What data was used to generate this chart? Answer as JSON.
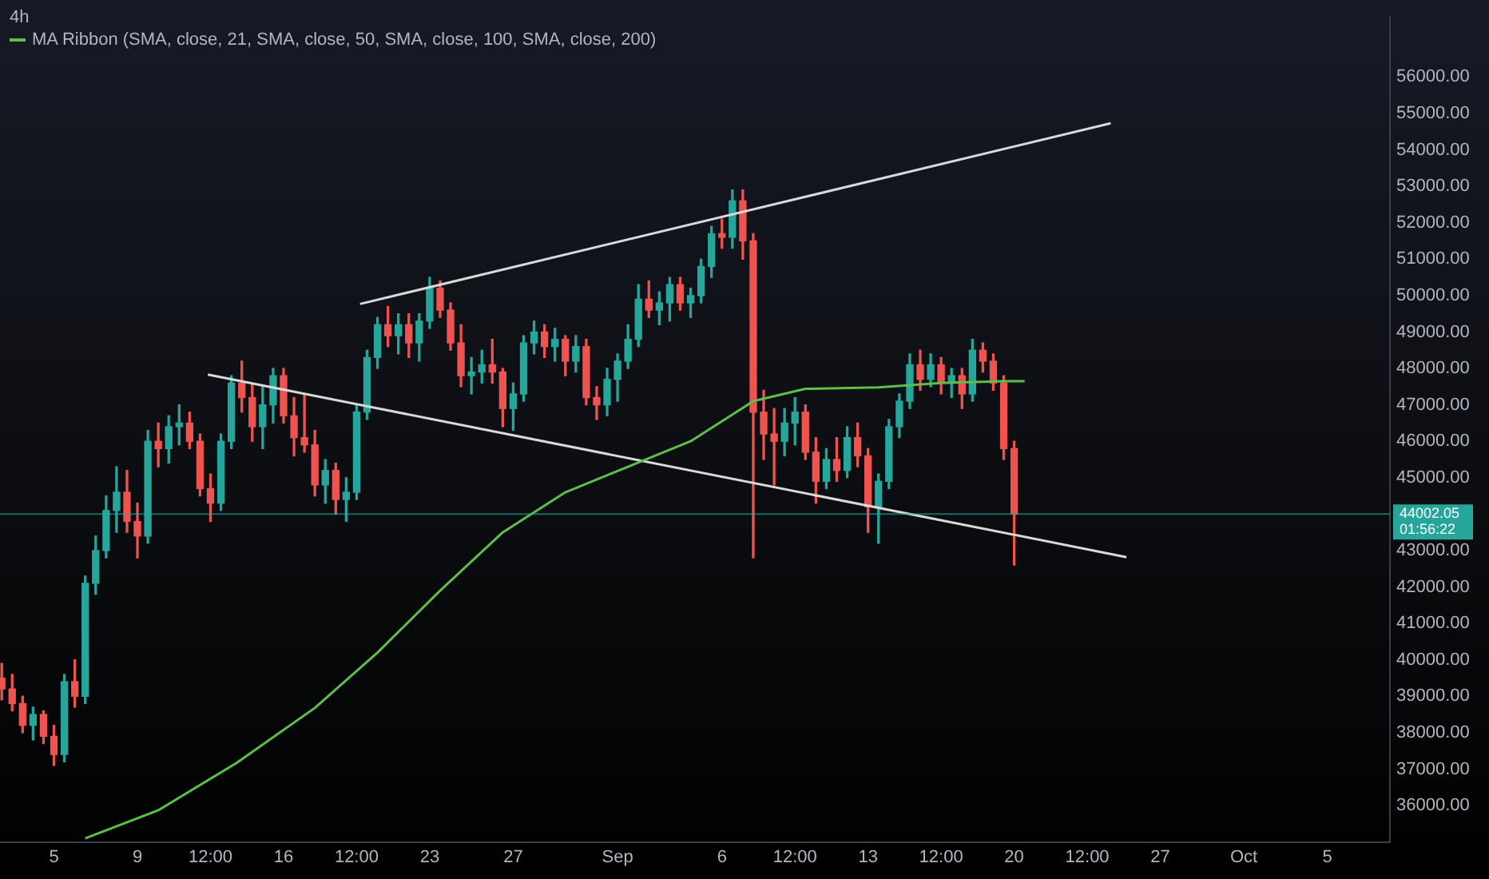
{
  "chart_data": {
    "type": "candlestick",
    "title": "4h",
    "x": [
      "--08-02T12:00",
      "--08-03T00:00",
      "--08-03T12:00",
      "--08-04T00:00",
      "--08-04T12:00",
      "--08-05T00:00",
      "--08-05T12:00",
      "--08-06T00:00",
      "--08-06T12:00",
      "--08-07T00:00",
      "--08-07T12:00",
      "--08-08T00:00",
      "--08-08T12:00",
      "--08-09T00:00",
      "--08-09T12:00",
      "--08-10T00:00",
      "--08-10T12:00",
      "--08-11T00:00",
      "--08-11T12:00",
      "--08-12T00:00",
      "--08-12T12:00",
      "--08-13T00:00",
      "--08-13T12:00",
      "--08-14T00:00",
      "--08-14T12:00",
      "--08-15T00:00",
      "--08-15T12:00",
      "--08-16T00:00",
      "--08-16T12:00",
      "--08-17T00:00",
      "--08-17T12:00",
      "--08-18T00:00",
      "--08-18T12:00",
      "--08-19T00:00",
      "--08-19T12:00",
      "--08-20T00:00",
      "--08-20T12:00",
      "--08-21T00:00",
      "--08-21T12:00",
      "--08-22T00:00",
      "--08-22T12:00",
      "--08-23T00:00",
      "--08-23T12:00",
      "--08-24T00:00",
      "--08-24T12:00",
      "--08-25T00:00",
      "--08-25T12:00",
      "--08-26T00:00",
      "--08-26T12:00",
      "--08-27T00:00",
      "--08-27T12:00",
      "--08-28T00:00",
      "--08-28T12:00",
      "--08-29T00:00",
      "--08-29T12:00",
      "--08-30T00:00",
      "--08-30T12:00",
      "--08-31T00:00",
      "--08-31T12:00",
      "--09-01T00:00",
      "--09-01T12:00",
      "--09-02T00:00",
      "--09-02T12:00",
      "--09-03T00:00",
      "--09-03T12:00",
      "--09-04T00:00",
      "--09-04T12:00",
      "--09-05T00:00",
      "--09-05T12:00",
      "--09-06T00:00",
      "--09-06T12:00",
      "--09-07T00:00",
      "--09-07T12:00",
      "--09-08T00:00",
      "--09-08T12:00",
      "--09-09T00:00",
      "--09-09T12:00",
      "--09-10T00:00",
      "--09-10T12:00",
      "--09-11T00:00",
      "--09-11T12:00",
      "--09-12T00:00",
      "--09-12T12:00",
      "--09-13T00:00",
      "--09-13T12:00",
      "--09-14T00:00",
      "--09-14T12:00",
      "--09-15T00:00",
      "--09-15T12:00",
      "--09-16T00:00",
      "--09-16T12:00",
      "--09-17T00:00",
      "--09-17T12:00",
      "--09-18T00:00",
      "--09-18T12:00",
      "--09-19T00:00",
      "--09-19T12:00",
      "--09-20T00:00"
    ],
    "ohlc": [
      [
        39500,
        39900,
        38900,
        39200
      ],
      [
        39200,
        39600,
        38600,
        38800
      ],
      [
        38800,
        39000,
        38000,
        38200
      ],
      [
        38200,
        38700,
        37800,
        38500
      ],
      [
        38500,
        38600,
        37700,
        37900
      ],
      [
        37900,
        38200,
        37100,
        37400
      ],
      [
        37400,
        39600,
        37200,
        39400
      ],
      [
        39400,
        40000,
        38700,
        39000
      ],
      [
        39000,
        42300,
        38800,
        42100
      ],
      [
        42100,
        43400,
        41800,
        43000
      ],
      [
        43000,
        44500,
        42800,
        44100
      ],
      [
        44100,
        45300,
        43500,
        44600
      ],
      [
        44600,
        45200,
        43500,
        43800
      ],
      [
        43800,
        44300,
        42800,
        43400
      ],
      [
        43400,
        46300,
        43200,
        46000
      ],
      [
        46000,
        46500,
        45300,
        45800
      ],
      [
        45800,
        46700,
        45400,
        46400
      ],
      [
        46400,
        47000,
        45900,
        46500
      ],
      [
        46500,
        46800,
        45800,
        46000
      ],
      [
        46000,
        46200,
        44500,
        44700
      ],
      [
        44700,
        45100,
        43800,
        44300
      ],
      [
        44300,
        46200,
        44100,
        46000
      ],
      [
        46000,
        47800,
        45800,
        47600
      ],
      [
        47600,
        48200,
        46800,
        47200
      ],
      [
        47200,
        47600,
        46000,
        46400
      ],
      [
        46400,
        47500,
        45800,
        47000
      ],
      [
        47000,
        48000,
        46500,
        47800
      ],
      [
        47800,
        48000,
        46500,
        46700
      ],
      [
        46700,
        47200,
        45600,
        46100
      ],
      [
        46100,
        47300,
        45700,
        45900
      ],
      [
        45900,
        46300,
        44500,
        44800
      ],
      [
        44800,
        45500,
        44300,
        45200
      ],
      [
        45200,
        45400,
        44000,
        44400
      ],
      [
        44400,
        45000,
        43800,
        44600
      ],
      [
        44600,
        47000,
        44400,
        46800
      ],
      [
        46800,
        48500,
        46600,
        48300
      ],
      [
        48300,
        49400,
        48000,
        49200
      ],
      [
        49200,
        49700,
        48600,
        48900
      ],
      [
        48900,
        49500,
        48400,
        49200
      ],
      [
        49200,
        49500,
        48300,
        48700
      ],
      [
        48700,
        49500,
        48200,
        49300
      ],
      [
        49300,
        50500,
        49100,
        50200
      ],
      [
        50200,
        50400,
        49400,
        49600
      ],
      [
        49600,
        49800,
        48500,
        48700
      ],
      [
        48700,
        49200,
        47500,
        47800
      ],
      [
        47800,
        48300,
        47300,
        47900
      ],
      [
        47900,
        48500,
        47600,
        48100
      ],
      [
        48100,
        48800,
        47600,
        47900
      ],
      [
        47900,
        48000,
        46400,
        46900
      ],
      [
        46900,
        47600,
        46300,
        47300
      ],
      [
        47300,
        48900,
        47100,
        48700
      ],
      [
        48700,
        49300,
        48400,
        49000
      ],
      [
        49000,
        49200,
        48300,
        48600
      ],
      [
        48600,
        49100,
        48200,
        48800
      ],
      [
        48800,
        48900,
        47800,
        48200
      ],
      [
        48200,
        48900,
        47900,
        48600
      ],
      [
        48600,
        48800,
        47000,
        47200
      ],
      [
        47200,
        47500,
        46600,
        47000
      ],
      [
        47000,
        48000,
        46700,
        47700
      ],
      [
        47700,
        48400,
        47100,
        48200
      ],
      [
        48200,
        49200,
        48000,
        48800
      ],
      [
        48800,
        50300,
        48600,
        49900
      ],
      [
        49900,
        50400,
        49400,
        49600
      ],
      [
        49600,
        50100,
        49200,
        49800
      ],
      [
        49800,
        50500,
        49300,
        50300
      ],
      [
        50300,
        50500,
        49600,
        49800
      ],
      [
        49800,
        50200,
        49400,
        50000
      ],
      [
        50000,
        51000,
        49800,
        50800
      ],
      [
        50800,
        51900,
        50500,
        51700
      ],
      [
        51700,
        52100,
        51300,
        51600
      ],
      [
        51600,
        52900,
        51300,
        52600
      ],
      [
        52600,
        52900,
        51000,
        51500
      ],
      [
        51500,
        51700,
        42800,
        46800
      ],
      [
        46800,
        47400,
        45500,
        46200
      ],
      [
        46200,
        46900,
        44800,
        46000
      ],
      [
        46000,
        46900,
        45600,
        46500
      ],
      [
        46500,
        47200,
        45900,
        46800
      ],
      [
        46800,
        47000,
        45500,
        45700
      ],
      [
        45700,
        46100,
        44300,
        44900
      ],
      [
        44900,
        45800,
        44700,
        45500
      ],
      [
        45500,
        46100,
        44900,
        45200
      ],
      [
        45200,
        46400,
        45000,
        46100
      ],
      [
        46100,
        46500,
        45300,
        45600
      ],
      [
        45600,
        45800,
        43500,
        44200
      ],
      [
        44200,
        45100,
        43200,
        44900
      ],
      [
        44900,
        46600,
        44700,
        46400
      ],
      [
        46400,
        47300,
        46100,
        47100
      ],
      [
        47100,
        48400,
        46900,
        48100
      ],
      [
        48100,
        48500,
        47400,
        47700
      ],
      [
        47700,
        48400,
        47500,
        48100
      ],
      [
        48100,
        48300,
        47300,
        47600
      ],
      [
        47600,
        48000,
        47200,
        47800
      ],
      [
        47800,
        48000,
        46900,
        47300
      ],
      [
        47300,
        48800,
        47100,
        48500
      ],
      [
        48500,
        48700,
        47900,
        48200
      ],
      [
        48200,
        48400,
        47400,
        47600
      ],
      [
        47600,
        47800,
        45500,
        45800
      ],
      [
        45800,
        46000,
        42600,
        44002.05
      ]
    ],
    "colors": [
      "#ef5350",
      "#ef5350",
      "#ef5350",
      "#26a69a",
      "#ef5350",
      "#ef5350",
      "#26a69a",
      "#ef5350",
      "#26a69a",
      "#26a69a",
      "#26a69a",
      "#26a69a",
      "#ef5350",
      "#ef5350",
      "#26a69a",
      "#ef5350",
      "#26a69a",
      "#26a69a",
      "#ef5350",
      "#ef5350",
      "#ef5350",
      "#26a69a",
      "#26a69a",
      "#ef5350",
      "#ef5350",
      "#26a69a",
      "#26a69a",
      "#ef5350",
      "#ef5350",
      "#ef5350",
      "#ef5350",
      "#26a69a",
      "#ef5350",
      "#26a69a",
      "#26a69a",
      "#26a69a",
      "#26a69a",
      "#ef5350",
      "#26a69a",
      "#ef5350",
      "#26a69a",
      "#26a69a",
      "#ef5350",
      "#ef5350",
      "#ef5350",
      "#26a69a",
      "#26a69a",
      "#ef5350",
      "#ef5350",
      "#26a69a",
      "#26a69a",
      "#26a69a",
      "#ef5350",
      "#26a69a",
      "#ef5350",
      "#26a69a",
      "#ef5350",
      "#ef5350",
      "#26a69a",
      "#26a69a",
      "#26a69a",
      "#26a69a",
      "#ef5350",
      "#26a69a",
      "#26a69a",
      "#ef5350",
      "#26a69a",
      "#26a69a",
      "#26a69a",
      "#ef5350",
      "#26a69a",
      "#ef5350",
      "#ef5350",
      "#ef5350",
      "#ef5350",
      "#26a69a",
      "#26a69a",
      "#ef5350",
      "#ef5350",
      "#26a69a",
      "#ef5350",
      "#26a69a",
      "#ef5350",
      "#ef5350",
      "#26a69a",
      "#26a69a",
      "#26a69a",
      "#26a69a",
      "#ef5350",
      "#26a69a",
      "#ef5350",
      "#26a69a",
      "#ef5350",
      "#26a69a",
      "#ef5350",
      "#ef5350",
      "#ef5350",
      "#ef5350"
    ],
    "series": [
      {
        "type": "line",
        "name": "MA Ribbon (SMA, close, 21, SMA, close, 50, SMA, close, 100, SMA, close, 200)",
        "color": "#5cbf4a",
        "x": [
          "--08-06T12:00",
          "--08-10T00:00",
          "--08-13T18:00",
          "--08-17T12:00",
          "--08-20T12:00",
          "--08-23T12:00",
          "--08-26T12:00",
          "--08-29T12:00",
          "--09-01T12:00",
          "--09-04T12:00",
          "--09-07T12:00",
          "--09-10T00:00",
          "--09-13T12:00",
          "--09-16T12:00",
          "--09-19T12:00",
          "--09-20T12:00"
        ],
        "values": [
          35100,
          35870,
          37170,
          38680,
          40200,
          41900,
          43500,
          44600,
          45300,
          46000,
          47100,
          47440,
          47480,
          47600,
          47650,
          47650
        ]
      },
      {
        "type": "line",
        "color": "#d9d9d9",
        "x": [
          "--08-19T16:00",
          "--09-24T15:00"
        ],
        "values": [
          49770,
          54730
        ]
      },
      {
        "type": "line",
        "color": "#d9d9d9",
        "x": [
          "--08-12T09:00",
          "--09-25T09:00"
        ],
        "values": [
          47830,
          42820
        ]
      }
    ],
    "xlim": [
      "--08-02T10:00",
      "--10-08T00:00"
    ],
    "xticks": [
      {
        "value": "--08-05",
        "label": "5"
      },
      {
        "value": "--08-09",
        "label": "9"
      },
      {
        "value": "--08-12T12:00",
        "label": "12:00"
      },
      {
        "value": "--08-16",
        "label": "16"
      },
      {
        "value": "--08-19T12:00",
        "label": "12:00"
      },
      {
        "value": "--08-23",
        "label": "23"
      },
      {
        "value": "--08-27",
        "label": "27"
      },
      {
        "value": "--09-01",
        "label": "Sep"
      },
      {
        "value": "--09-06",
        "label": "6"
      },
      {
        "value": "--09-09T12:00",
        "label": "12:00"
      },
      {
        "value": "--09-13",
        "label": "13"
      },
      {
        "value": "--09-16T12:00",
        "label": "12:00"
      },
      {
        "value": "--09-20",
        "label": "20"
      },
      {
        "value": "--09-23T12:00",
        "label": "12:00"
      },
      {
        "value": "--09-27",
        "label": "27"
      },
      {
        "value": "--10-01",
        "label": "Oct"
      },
      {
        "value": "--10-05",
        "label": "5"
      }
    ],
    "ylim": [
      35000,
      57650
    ],
    "yticks": [
      {
        "value": 36000,
        "label": "36000.00"
      },
      {
        "value": 37000,
        "label": "37000.00"
      },
      {
        "value": 38000,
        "label": "38000.00"
      },
      {
        "value": 39000,
        "label": "39000.00"
      },
      {
        "value": 40000,
        "label": "40000.00"
      },
      {
        "value": 41000,
        "label": "41000.00"
      },
      {
        "value": 42000,
        "label": "42000.00"
      },
      {
        "value": 43000,
        "label": "43000.00"
      },
      {
        "value": 45000,
        "label": "45000.00"
      },
      {
        "value": 46000,
        "label": "46000.00"
      },
      {
        "value": 47000,
        "label": "47000.00"
      },
      {
        "value": 48000,
        "label": "48000.00"
      },
      {
        "value": 49000,
        "label": "49000.00"
      },
      {
        "value": 50000,
        "label": "50000.00"
      },
      {
        "value": 51000,
        "label": "51000.00"
      },
      {
        "value": 52000,
        "label": "52000.00"
      },
      {
        "value": 53000,
        "label": "53000.00"
      },
      {
        "value": 54000,
        "label": "54000.00"
      },
      {
        "value": 55000,
        "label": "55000.00"
      },
      {
        "value": 56000,
        "label": "56000.00"
      }
    ],
    "ref_lines": [
      {
        "axis": "y",
        "value": 44002.05,
        "label": "44002.05",
        "color": "#26a69a"
      }
    ],
    "annotations": [
      "01:56:22"
    ],
    "legend": "top left",
    "grid": false
  }
}
